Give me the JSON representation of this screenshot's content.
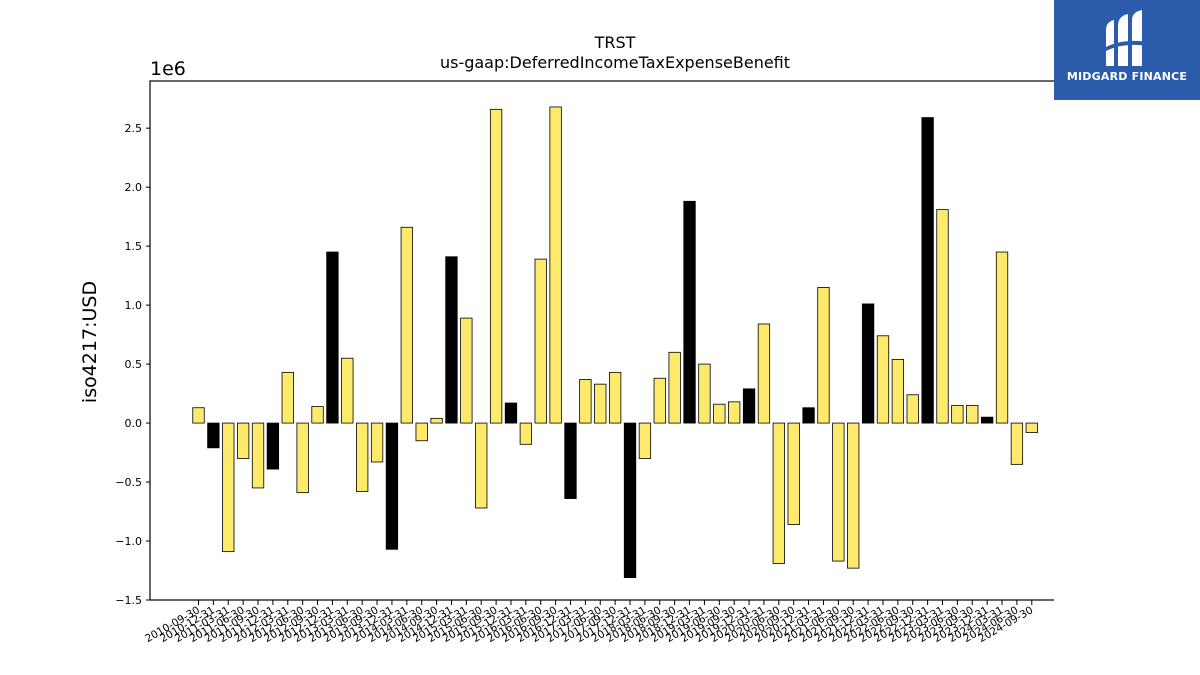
{
  "chart_data": {
    "type": "bar",
    "title": "TRST",
    "subtitle": "us-gaap:DeferredIncomeTaxExpenseBenefit",
    "ylabel": "iso4217:USD",
    "y_offset_label": "1e6",
    "ylim": [
      -1.5,
      2.9
    ],
    "y_ticks": [
      -1.5,
      -1.0,
      -0.5,
      0.0,
      0.5,
      1.0,
      1.5,
      2.0,
      2.5
    ],
    "y_tick_labels": [
      "−1.5",
      "−1.0",
      "−0.5",
      "0.0",
      "0.5",
      "1.0",
      "1.5",
      "2.0",
      "2.5"
    ],
    "colors": {
      "quarter": "#fde96b",
      "annual": "#000000"
    },
    "bars": [
      {
        "x": "2010-09-30",
        "value": 0.13,
        "kind": "quarter"
      },
      {
        "x": "2010-12-31",
        "value": -0.21,
        "kind": "annual"
      },
      {
        "x": "2011-03-31",
        "value": -1.09,
        "kind": "quarter"
      },
      {
        "x": "2011-06-30",
        "value": -0.3,
        "kind": "quarter"
      },
      {
        "x": "2011-09-30",
        "value": -0.55,
        "kind": "quarter"
      },
      {
        "x": "2011-12-31",
        "value": -0.39,
        "kind": "annual"
      },
      {
        "x": "2012-03-31",
        "value": 0.43,
        "kind": "quarter"
      },
      {
        "x": "2012-06-30",
        "value": -0.59,
        "kind": "quarter"
      },
      {
        "x": "2012-09-30",
        "value": 0.14,
        "kind": "quarter"
      },
      {
        "x": "2012-12-31",
        "value": 1.45,
        "kind": "annual"
      },
      {
        "x": "2013-03-31",
        "value": 0.55,
        "kind": "quarter"
      },
      {
        "x": "2013-06-30",
        "value": -0.58,
        "kind": "quarter"
      },
      {
        "x": "2013-09-30",
        "value": -0.33,
        "kind": "quarter"
      },
      {
        "x": "2013-12-31",
        "value": -1.07,
        "kind": "annual"
      },
      {
        "x": "2014-03-31",
        "value": 1.66,
        "kind": "quarter"
      },
      {
        "x": "2014-06-30",
        "value": -0.15,
        "kind": "quarter"
      },
      {
        "x": "2014-09-30",
        "value": 0.04,
        "kind": "quarter"
      },
      {
        "x": "2014-12-31",
        "value": 1.41,
        "kind": "annual"
      },
      {
        "x": "2015-03-31",
        "value": 0.89,
        "kind": "quarter"
      },
      {
        "x": "2015-06-30",
        "value": -0.72,
        "kind": "quarter"
      },
      {
        "x": "2015-09-30",
        "value": 2.66,
        "kind": "quarter"
      },
      {
        "x": "2015-12-31",
        "value": 0.17,
        "kind": "annual"
      },
      {
        "x": "2016-03-31",
        "value": -0.18,
        "kind": "quarter"
      },
      {
        "x": "2016-06-30",
        "value": 1.39,
        "kind": "quarter"
      },
      {
        "x": "2016-09-30",
        "value": 2.68,
        "kind": "quarter"
      },
      {
        "x": "2016-12-31",
        "value": -0.64,
        "kind": "annual"
      },
      {
        "x": "2017-03-31",
        "value": 0.37,
        "kind": "quarter"
      },
      {
        "x": "2017-06-30",
        "value": 0.33,
        "kind": "quarter"
      },
      {
        "x": "2017-09-30",
        "value": 0.43,
        "kind": "quarter"
      },
      {
        "x": "2017-12-31",
        "value": -1.31,
        "kind": "annual"
      },
      {
        "x": "2018-03-31",
        "value": -0.3,
        "kind": "quarter"
      },
      {
        "x": "2018-06-30",
        "value": 0.38,
        "kind": "quarter"
      },
      {
        "x": "2018-09-30",
        "value": 0.6,
        "kind": "quarter"
      },
      {
        "x": "2018-12-31",
        "value": 1.88,
        "kind": "annual"
      },
      {
        "x": "2019-03-31",
        "value": 0.5,
        "kind": "quarter"
      },
      {
        "x": "2019-06-30",
        "value": 0.16,
        "kind": "quarter"
      },
      {
        "x": "2019-09-30",
        "value": 0.18,
        "kind": "quarter"
      },
      {
        "x": "2019-12-31",
        "value": 0.29,
        "kind": "annual"
      },
      {
        "x": "2020-03-31",
        "value": 0.84,
        "kind": "quarter"
      },
      {
        "x": "2020-06-30",
        "value": -1.19,
        "kind": "quarter"
      },
      {
        "x": "2020-09-30",
        "value": -0.86,
        "kind": "quarter"
      },
      {
        "x": "2020-12-31",
        "value": 0.13,
        "kind": "annual"
      },
      {
        "x": "2021-03-31",
        "value": 1.15,
        "kind": "quarter"
      },
      {
        "x": "2021-06-30",
        "value": -1.17,
        "kind": "quarter"
      },
      {
        "x": "2021-09-30",
        "value": -1.23,
        "kind": "quarter"
      },
      {
        "x": "2021-12-31",
        "value": 1.01,
        "kind": "annual"
      },
      {
        "x": "2022-03-31",
        "value": 0.74,
        "kind": "quarter"
      },
      {
        "x": "2022-06-30",
        "value": 0.54,
        "kind": "quarter"
      },
      {
        "x": "2022-09-30",
        "value": 0.24,
        "kind": "quarter"
      },
      {
        "x": "2022-12-31",
        "value": 2.59,
        "kind": "annual"
      },
      {
        "x": "2023-03-31",
        "value": 1.81,
        "kind": "quarter"
      },
      {
        "x": "2023-06-30",
        "value": 0.15,
        "kind": "quarter"
      },
      {
        "x": "2023-09-30",
        "value": 0.15,
        "kind": "quarter"
      },
      {
        "x": "2023-12-31",
        "value": 0.05,
        "kind": "annual"
      },
      {
        "x": "2024-03-31",
        "value": 1.45,
        "kind": "quarter"
      },
      {
        "x": "2024-06-30",
        "value": -0.35,
        "kind": "quarter"
      },
      {
        "x": "2024-09-30",
        "value": -0.08,
        "kind": "quarter"
      }
    ],
    "grid": false,
    "legend": "none"
  },
  "logo": {
    "name": "MIDGARD FINANCE",
    "icon": "midgard-m-logo-icon"
  }
}
